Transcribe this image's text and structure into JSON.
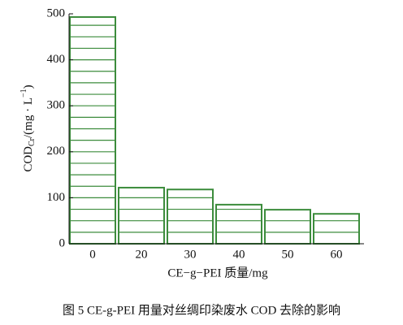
{
  "chart_data": {
    "type": "bar",
    "categories": [
      "0",
      "20",
      "30",
      "40",
      "50",
      "60"
    ],
    "values": [
      493,
      122,
      118,
      85,
      74,
      65
    ],
    "color": "#3c8c3c",
    "ylim": [
      0,
      500
    ],
    "yticks": [
      0,
      100,
      200,
      300,
      400,
      500
    ],
    "x_label": "CE−g−PEI 质量/mg",
    "y_label": [
      "COD",
      "Cr",
      "/(mg · L",
      "−1",
      ")"
    ],
    "caption": "图 5   CE-g-PEI 用量对丝绸印染废水 COD 去除的影响"
  }
}
